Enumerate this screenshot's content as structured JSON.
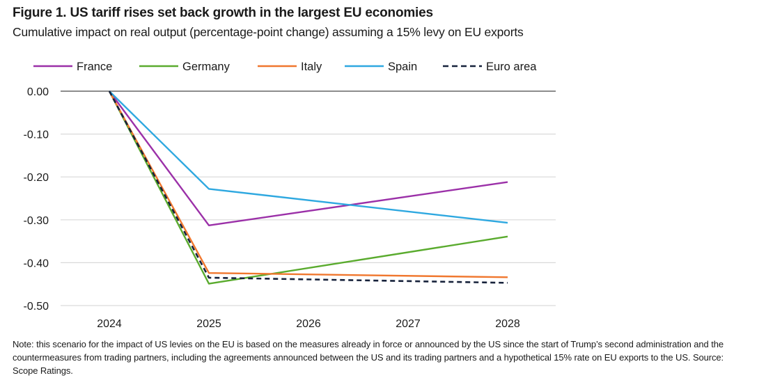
{
  "title": "Figure 1. US tariff rises set back growth in the largest EU economies",
  "subtitle": "Cumulative impact on real output (percentage-point change) assuming a 15% levy on EU exports",
  "note": "Note: this scenario for the impact of US levies on the EU is based on the measures already in force or announced by the US since the start of Trump’s second administration and the countermeasures from trading partners, including the agreements announced between the US and its trading partners and a hypothetical 15% rate on EU exports to the US. Source: Scope Ratings.",
  "chart_data": {
    "type": "line",
    "x": [
      "2024",
      "2025",
      "2026",
      "2027",
      "2028"
    ],
    "yticks": [
      "0.00",
      "-0.10",
      "-0.20",
      "-0.30",
      "-0.40",
      "-0.50"
    ],
    "ylim": [
      -0.5,
      0.0
    ],
    "grid": true,
    "legend_position": "top",
    "series": [
      {
        "name": "France",
        "color": "#9b30a8",
        "dashed": false,
        "values": [
          0.0,
          -0.313,
          null,
          null,
          -0.212
        ]
      },
      {
        "name": "Germany",
        "color": "#5aab2e",
        "dashed": false,
        "values": [
          0.0,
          -0.449,
          null,
          null,
          -0.339
        ]
      },
      {
        "name": "Italy",
        "color": "#f0772e",
        "dashed": false,
        "values": [
          0.0,
          -0.424,
          null,
          null,
          -0.434
        ]
      },
      {
        "name": "Spain",
        "color": "#2ea8e0",
        "dashed": false,
        "values": [
          0.0,
          -0.228,
          null,
          null,
          -0.307
        ]
      },
      {
        "name": "Euro area",
        "color": "#17223b",
        "dashed": true,
        "values": [
          0.0,
          -0.435,
          null,
          null,
          -0.447
        ]
      }
    ]
  }
}
